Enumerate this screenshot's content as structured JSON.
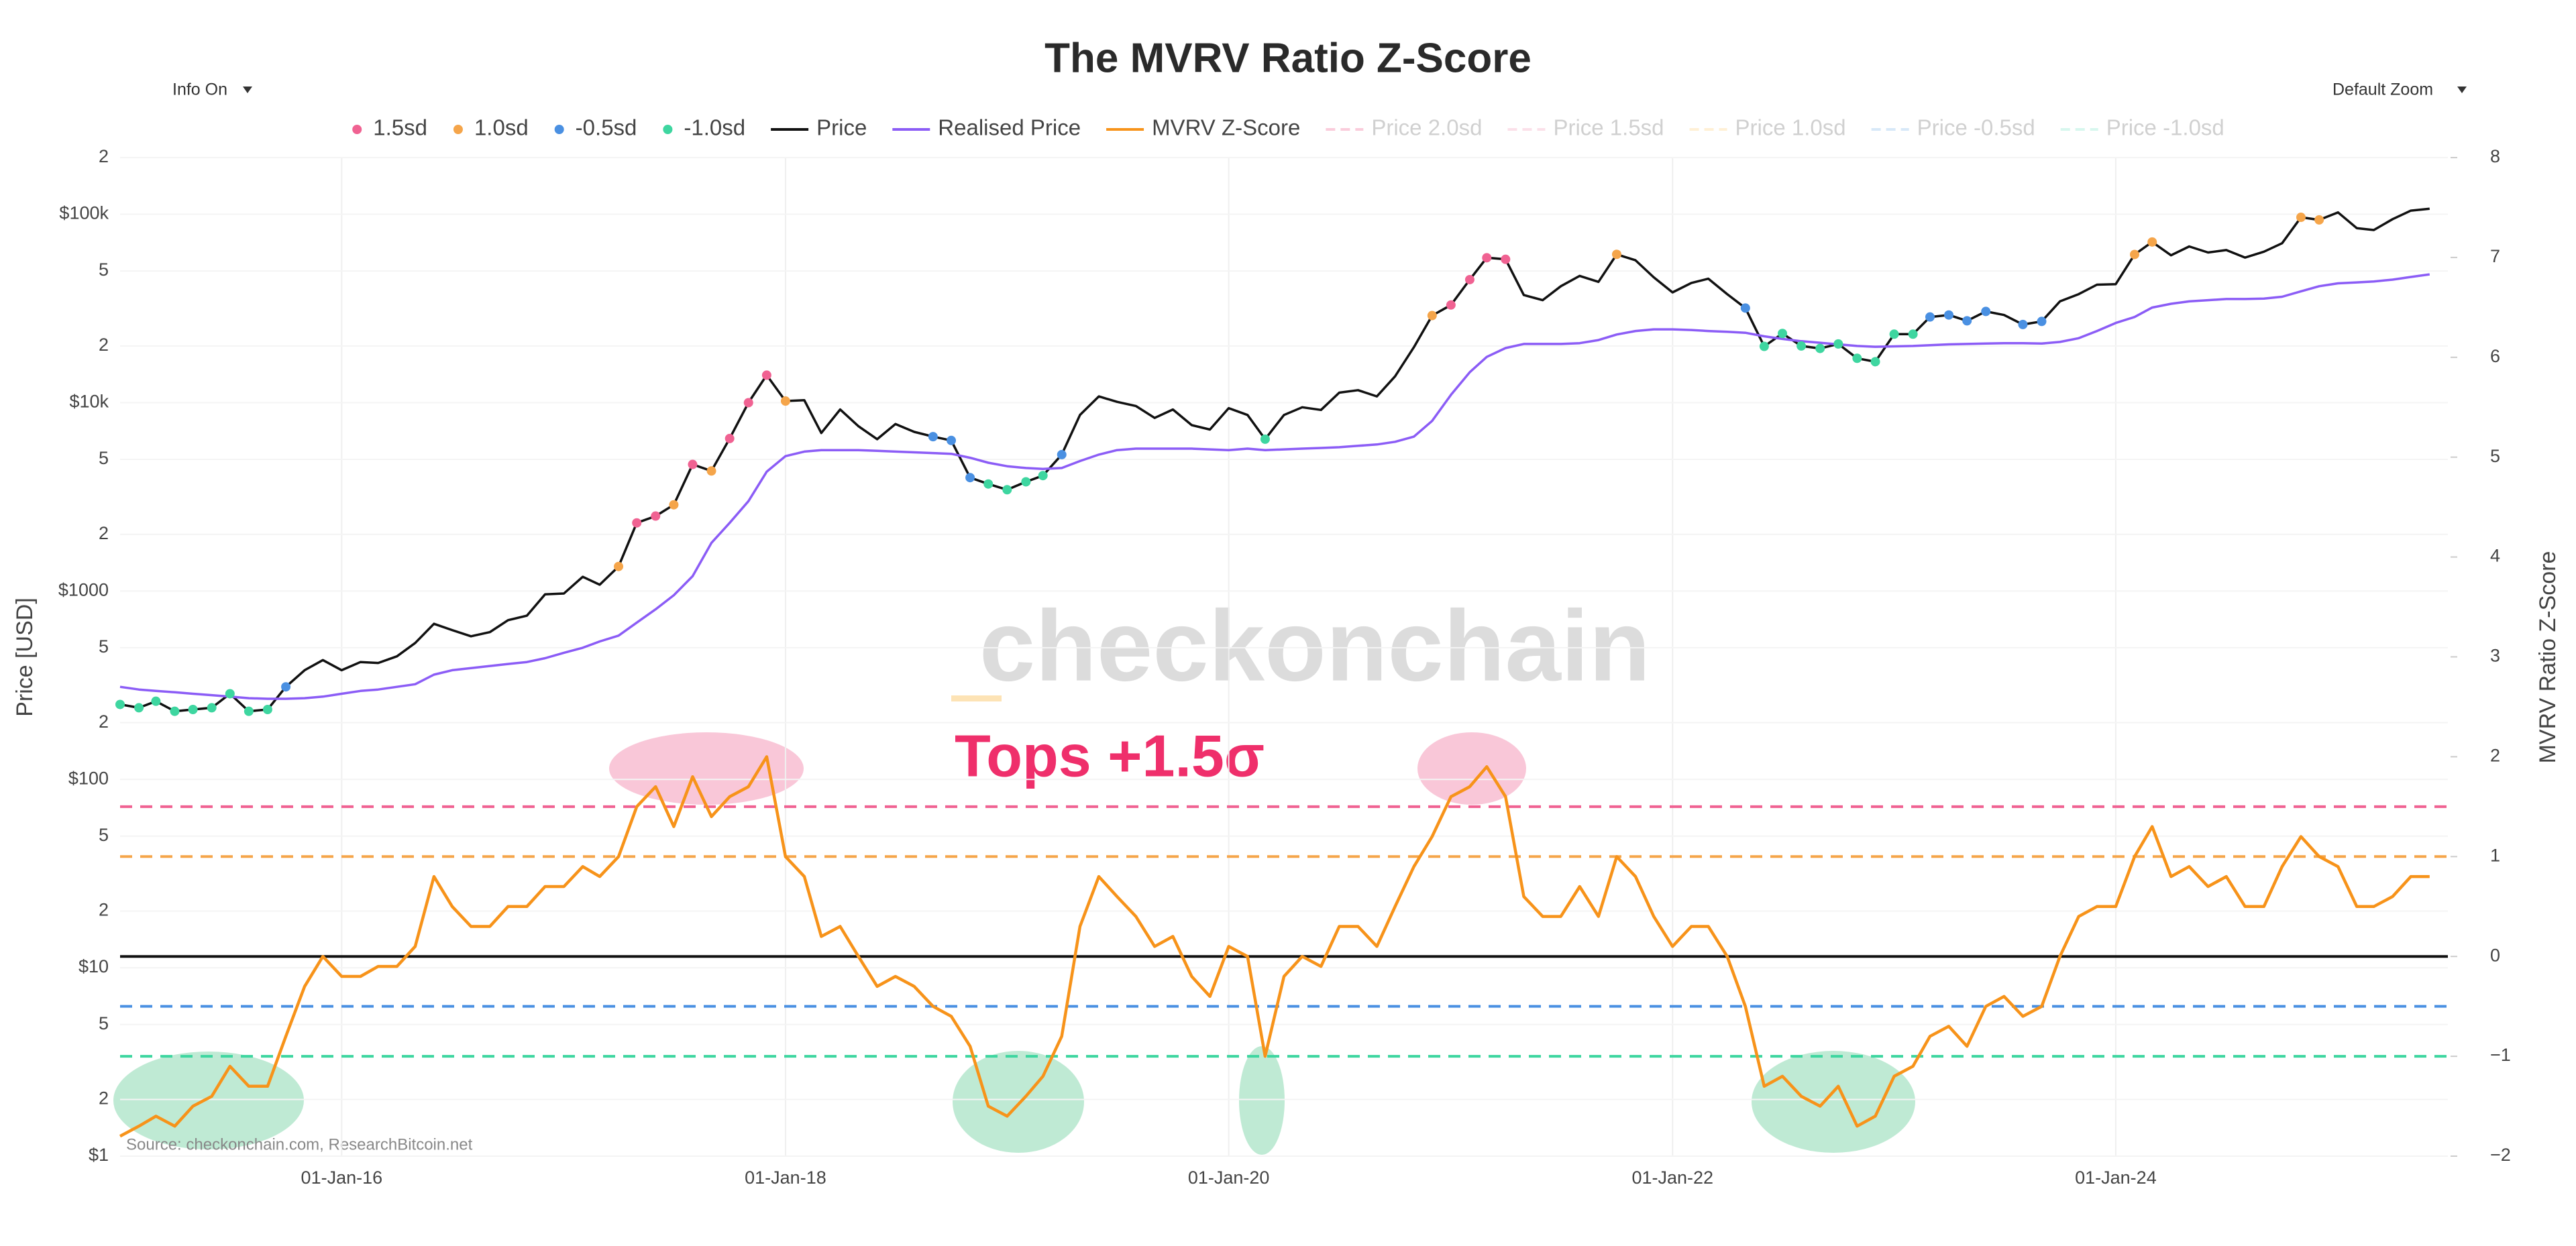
{
  "controls": {
    "info": "Info On",
    "zoom": "Default Zoom"
  },
  "chart_data": {
    "type": "line",
    "title": "The MVRV Ratio Z-Score",
    "y_title": "Price [USD]",
    "y2_title": "MVRV Ratio Z-Score",
    "tops_label": "Tops +1.5σ",
    "watermark": "checkonchain",
    "source": "Source: checkonchain.com, ResearchBitcoin.net",
    "y_log": true,
    "grid": true,
    "xlim": [
      "2015-01-01",
      "2025-07-01"
    ],
    "xticks": [
      {
        "value": "2016-01-01",
        "label": "01-Jan-16"
      },
      {
        "value": "2018-01-01",
        "label": "01-Jan-18"
      },
      {
        "value": "2020-01-01",
        "label": "01-Jan-20"
      },
      {
        "value": "2022-01-01",
        "label": "01-Jan-22"
      },
      {
        "value": "2024-01-01",
        "label": "01-Jan-24"
      }
    ],
    "ylim": [
      1,
      200000
    ],
    "yticks": [
      {
        "value": 1,
        "label": "$1"
      },
      2,
      5,
      {
        "value": 10,
        "label": "$10"
      },
      {
        "value": 20,
        "label": "2"
      },
      {
        "value": 50,
        "label": "5"
      },
      {
        "value": 100,
        "label": "$100"
      },
      {
        "value": 200,
        "label": "2"
      },
      {
        "value": 500,
        "label": "5"
      },
      {
        "value": 1000,
        "label": "$1000"
      },
      {
        "value": 2000,
        "label": "2"
      },
      {
        "value": 5000,
        "label": "5"
      },
      {
        "value": 10000,
        "label": "$10k"
      },
      {
        "value": 20000,
        "label": "2"
      },
      {
        "value": 50000,
        "label": "5"
      },
      {
        "value": 100000,
        "label": "$100k"
      },
      {
        "value": 200000,
        "label": "2"
      }
    ],
    "y2lim": [
      -2,
      8
    ],
    "y2ticks": [
      {
        "value": -2,
        "label": "−2"
      },
      {
        "value": -1,
        "label": "−1"
      },
      0,
      1,
      2,
      3,
      4,
      5,
      6,
      7,
      8
    ],
    "x": [
      "2015-01-01",
      "2015-02-01",
      "2015-03-01",
      "2015-04-01",
      "2015-05-01",
      "2015-06-01",
      "2015-07-01",
      "2015-08-01",
      "2015-09-01",
      "2015-10-01",
      "2015-11-01",
      "2015-12-01",
      "2016-01-01",
      "2016-02-01",
      "2016-03-01",
      "2016-04-01",
      "2016-05-01",
      "2016-06-01",
      "2016-07-01",
      "2016-08-01",
      "2016-09-01",
      "2016-10-01",
      "2016-11-01",
      "2016-12-01",
      "2017-01-01",
      "2017-02-01",
      "2017-03-01",
      "2017-04-01",
      "2017-05-01",
      "2017-06-01",
      "2017-07-01",
      "2017-08-01",
      "2017-09-01",
      "2017-10-01",
      "2017-11-01",
      "2017-12-01",
      "2018-01-01",
      "2018-02-01",
      "2018-03-01",
      "2018-04-01",
      "2018-05-01",
      "2018-06-01",
      "2018-07-01",
      "2018-08-01",
      "2018-09-01",
      "2018-10-01",
      "2018-11-01",
      "2018-12-01",
      "2019-01-01",
      "2019-02-01",
      "2019-03-01",
      "2019-04-01",
      "2019-05-01",
      "2019-06-01",
      "2019-07-01",
      "2019-08-01",
      "2019-09-01",
      "2019-10-01",
      "2019-11-01",
      "2019-12-01",
      "2020-01-01",
      "2020-02-01",
      "2020-03-01",
      "2020-04-01",
      "2020-05-01",
      "2020-06-01",
      "2020-07-01",
      "2020-08-01",
      "2020-09-01",
      "2020-10-01",
      "2020-11-01",
      "2020-12-01",
      "2021-01-01",
      "2021-02-01",
      "2021-03-01",
      "2021-04-01",
      "2021-05-01",
      "2021-06-01",
      "2021-07-01",
      "2021-08-01",
      "2021-09-01",
      "2021-10-01",
      "2021-11-01",
      "2021-12-01",
      "2022-01-01",
      "2022-02-01",
      "2022-03-01",
      "2022-04-01",
      "2022-05-01",
      "2022-06-01",
      "2022-07-01",
      "2022-08-01",
      "2022-09-01",
      "2022-10-01",
      "2022-11-01",
      "2022-12-01",
      "2023-01-01",
      "2023-02-01",
      "2023-03-01",
      "2023-04-01",
      "2023-05-01",
      "2023-06-01",
      "2023-07-01",
      "2023-08-01",
      "2023-09-01",
      "2023-10-01",
      "2023-11-01",
      "2023-12-01",
      "2024-01-01",
      "2024-02-01",
      "2024-03-01",
      "2024-04-01",
      "2024-05-01",
      "2024-06-01",
      "2024-07-01",
      "2024-08-01",
      "2024-09-01",
      "2024-10-01",
      "2024-11-01",
      "2024-12-01",
      "2025-01-01",
      "2025-02-01",
      "2025-03-01",
      "2025-04-01",
      "2025-05-01",
      "2025-06-01"
    ],
    "series": [
      {
        "name": "Price",
        "color": "#111111",
        "values": [
          250,
          240,
          260,
          230,
          235,
          240,
          285,
          230,
          235,
          310,
          380,
          430,
          380,
          420,
          415,
          450,
          530,
          670,
          620,
          575,
          605,
          700,
          740,
          960,
          970,
          1190,
          1080,
          1350,
          2300,
          2500,
          2870,
          4700,
          4340,
          6450,
          10000,
          14000,
          10200,
          10300,
          6900,
          9200,
          7500,
          6400,
          7700,
          7000,
          6600,
          6300,
          4000,
          3700,
          3450,
          3800,
          4100,
          5300,
          8600,
          10800,
          10100,
          9600,
          8300,
          9200,
          7600,
          7200,
          9350,
          8600,
          6400,
          8600,
          9450,
          9150,
          11300,
          11650,
          10800,
          13800,
          19700,
          29000,
          33000,
          45000,
          58800,
          57700,
          37300,
          35000,
          41500,
          47100,
          43800,
          61300,
          57000,
          46300,
          38500,
          43200,
          45500,
          37700,
          31800,
          19900,
          23300,
          20000,
          19400,
          20500,
          17200,
          16500,
          23100,
          23100,
          28500,
          29200,
          27200,
          30500,
          29200,
          26000,
          27000,
          34500,
          37700,
          42300,
          42600,
          61200,
          71300,
          60600,
          67500,
          62700,
          64600,
          58900,
          63300,
          70200,
          96400,
          93400,
          102400,
          84400,
          82500,
          94200,
          104600,
          107100
        ]
      },
      {
        "name": "Realised Price",
        "color": "#8b5cf6",
        "values": [
          310,
          300,
          295,
          290,
          285,
          280,
          275,
          270,
          268,
          268,
          270,
          275,
          285,
          295,
          300,
          310,
          320,
          360,
          380,
          390,
          400,
          410,
          420,
          440,
          470,
          500,
          540,
          580,
          680,
          800,
          950,
          1200,
          1800,
          2300,
          3000,
          4300,
          5200,
          5500,
          5600,
          5600,
          5600,
          5550,
          5500,
          5450,
          5400,
          5350,
          5100,
          4800,
          4600,
          4500,
          4450,
          4500,
          4900,
          5300,
          5600,
          5700,
          5700,
          5700,
          5700,
          5650,
          5600,
          5700,
          5600,
          5650,
          5700,
          5750,
          5800,
          5900,
          6000,
          6200,
          6600,
          8000,
          11000,
          14500,
          17500,
          19500,
          20500,
          20500,
          20500,
          20700,
          21500,
          23000,
          24000,
          24500,
          24500,
          24300,
          24000,
          23800,
          23500,
          22500,
          21800,
          21200,
          20800,
          20400,
          20000,
          19800,
          19900,
          20000,
          20200,
          20400,
          20500,
          20600,
          20700,
          20700,
          20600,
          21000,
          22000,
          24000,
          26500,
          28500,
          32000,
          33500,
          34500,
          35000,
          35500,
          35500,
          35700,
          36500,
          39000,
          41500,
          43000,
          43500,
          44000,
          45000,
          46500,
          48000
        ]
      },
      {
        "name": "MVRV Z-Score",
        "color": "#f7931a",
        "axis": "y2",
        "values": [
          -1.8,
          -1.7,
          -1.6,
          -1.7,
          -1.5,
          -1.4,
          -1.1,
          -1.3,
          -1.3,
          -0.8,
          -0.3,
          0.0,
          -0.2,
          -0.2,
          -0.1,
          -0.1,
          0.1,
          0.8,
          0.5,
          0.3,
          0.3,
          0.5,
          0.5,
          0.7,
          0.7,
          0.9,
          0.8,
          1.0,
          1.5,
          1.7,
          1.3,
          1.8,
          1.4,
          1.6,
          1.7,
          2.0,
          1.0,
          0.8,
          0.2,
          0.3,
          0.0,
          -0.3,
          -0.2,
          -0.3,
          -0.5,
          -0.6,
          -0.9,
          -1.5,
          -1.6,
          -1.4,
          -1.2,
          -0.8,
          0.3,
          0.8,
          0.6,
          0.4,
          0.1,
          0.2,
          -0.2,
          -0.4,
          0.1,
          0.0,
          -1.0,
          -0.2,
          0.0,
          -0.1,
          0.3,
          0.3,
          0.1,
          0.5,
          0.9,
          1.2,
          1.6,
          1.7,
          1.9,
          1.6,
          0.6,
          0.4,
          0.4,
          0.7,
          0.4,
          1.0,
          0.8,
          0.4,
          0.1,
          0.3,
          0.3,
          0.0,
          -0.5,
          -1.3,
          -1.2,
          -1.4,
          -1.5,
          -1.3,
          -1.7,
          -1.6,
          -1.2,
          -1.1,
          -0.8,
          -0.7,
          -0.9,
          -0.5,
          -0.4,
          -0.6,
          -0.5,
          0.0,
          0.4,
          0.5,
          0.5,
          1.0,
          1.3,
          0.8,
          0.9,
          0.7,
          0.8,
          0.5,
          0.5,
          0.9,
          1.2,
          1.0,
          0.9,
          0.5,
          0.5,
          0.6,
          0.8,
          0.8
        ]
      }
    ],
    "markers": [
      {
        "name": "1.5sd",
        "color": "#f06292",
        "threshold": 1.5
      },
      {
        "name": "1.0sd",
        "color": "#f5a54a",
        "threshold": 1.0
      },
      {
        "name": "-0.5sd",
        "color": "#4a90e2",
        "threshold": -0.5
      },
      {
        "name": "-1.0sd",
        "color": "#3ed6a0",
        "threshold": -1.0
      }
    ],
    "hidden_series": [
      {
        "name": "Price 2.0sd",
        "color": "#f48fb1"
      },
      {
        "name": "Price 1.5sd",
        "color": "#f8bbd0"
      },
      {
        "name": "Price 1.0sd",
        "color": "#ffe0a3"
      },
      {
        "name": "Price -0.5sd",
        "color": "#a8cdf0"
      },
      {
        "name": "Price -1.0sd",
        "color": "#a8eedb"
      }
    ]
  }
}
